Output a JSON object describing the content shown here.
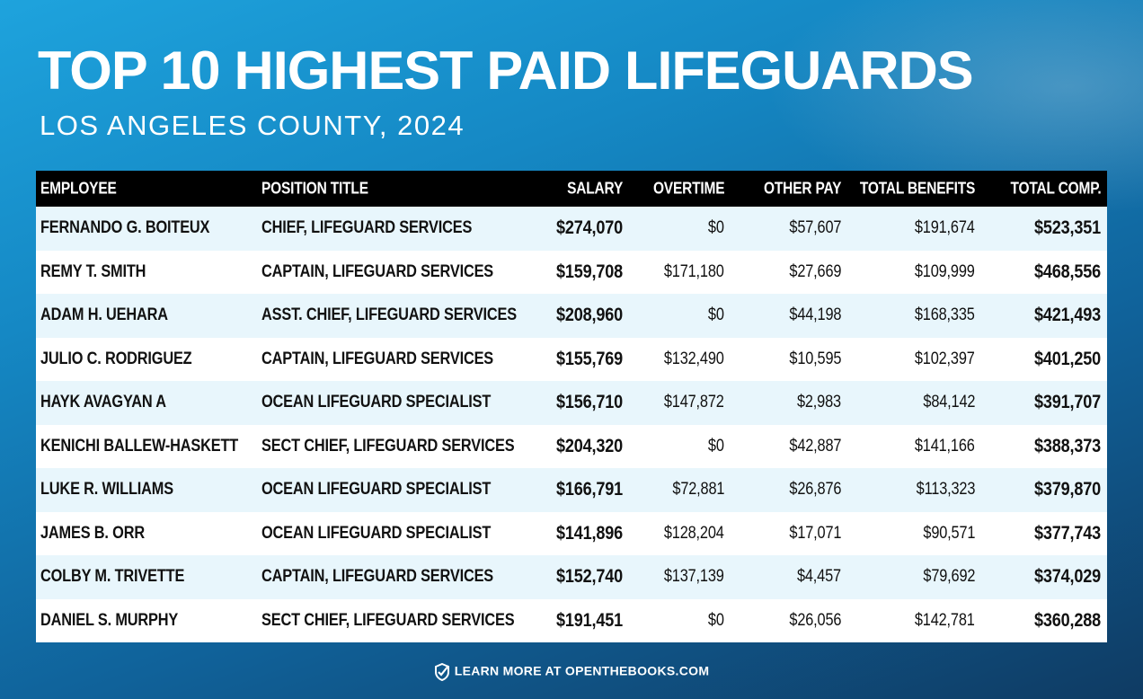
{
  "header": {
    "title": "TOP 10 HIGHEST PAID LIFEGUARDS",
    "subtitle": "LOS ANGELES COUNTY, 2024"
  },
  "chart_data": {
    "type": "table",
    "title": "TOP 10 HIGHEST PAID LIFEGUARDS",
    "subtitle": "LOS ANGELES COUNTY, 2024",
    "columns": [
      "EMPLOYEE",
      "POSITION TITLE",
      "SALARY",
      "OVERTIME",
      "OTHER PAY",
      "TOTAL BENEFITS",
      "TOTAL COMP."
    ],
    "rows": [
      [
        "FERNANDO G. BOITEUX",
        "CHIEF, LIFEGUARD SERVICES",
        "$274,070",
        "$0",
        "$57,607",
        "$191,674",
        "$523,351"
      ],
      [
        "REMY T. SMITH",
        "CAPTAIN, LIFEGUARD SERVICES",
        "$159,708",
        "$171,180",
        "$27,669",
        "$109,999",
        "$468,556"
      ],
      [
        "ADAM H. UEHARA",
        "ASST. CHIEF, LIFEGUARD SERVICES",
        "$208,960",
        "$0",
        "$44,198",
        "$168,335",
        "$421,493"
      ],
      [
        "JULIO C. RODRIGUEZ",
        "CAPTAIN, LIFEGUARD SERVICES",
        "$155,769",
        "$132,490",
        "$10,595",
        "$102,397",
        "$401,250"
      ],
      [
        "HAYK AVAGYAN A",
        "OCEAN LIFEGUARD SPECIALIST",
        "$156,710",
        "$147,872",
        "$2,983",
        "$84,142",
        "$391,707"
      ],
      [
        "KENICHI BALLEW-HASKETT",
        "SECT CHIEF, LIFEGUARD SERVICES",
        "$204,320",
        "$0",
        "$42,887",
        "$141,166",
        "$388,373"
      ],
      [
        "LUKE R. WILLIAMS",
        "OCEAN LIFEGUARD SPECIALIST",
        "$166,791",
        "$72,881",
        "$26,876",
        "$113,323",
        "$379,870"
      ],
      [
        "JAMES B. ORR",
        "OCEAN LIFEGUARD SPECIALIST",
        "$141,896",
        "$128,204",
        "$17,071",
        "$90,571",
        "$377,743"
      ],
      [
        "COLBY M. TRIVETTE",
        "CAPTAIN, LIFEGUARD SERVICES",
        "$152,740",
        "$137,139",
        "$4,457",
        "$79,692",
        "$374,029"
      ],
      [
        "DANIEL S. MURPHY",
        "SECT CHIEF, LIFEGUARD SERVICES",
        "$191,451",
        "$0",
        "$26,056",
        "$142,781",
        "$360,288"
      ]
    ]
  },
  "footer": {
    "text": "LEARN MORE AT OPENTHEBOOKS.COM",
    "icon": "shield-check-icon"
  }
}
